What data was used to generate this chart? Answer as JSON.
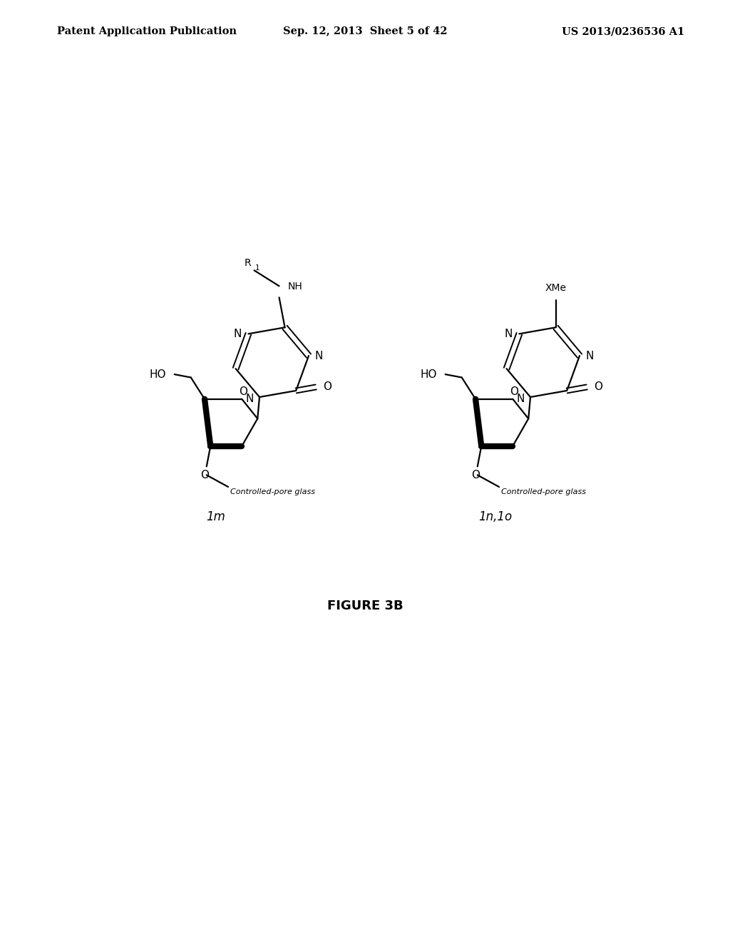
{
  "title_left": "Patent Application Publication",
  "title_center": "Sep. 12, 2013  Sheet 5 of 42",
  "title_right": "US 2013/0236536 A1",
  "figure_label": "FIGURE 3B",
  "compound_left_label": "1m",
  "compound_right_label": "1n,1o",
  "background_color": "#ffffff",
  "header_fontsize": 10.5,
  "label_fontsize": 12,
  "figure_label_fontsize": 13
}
